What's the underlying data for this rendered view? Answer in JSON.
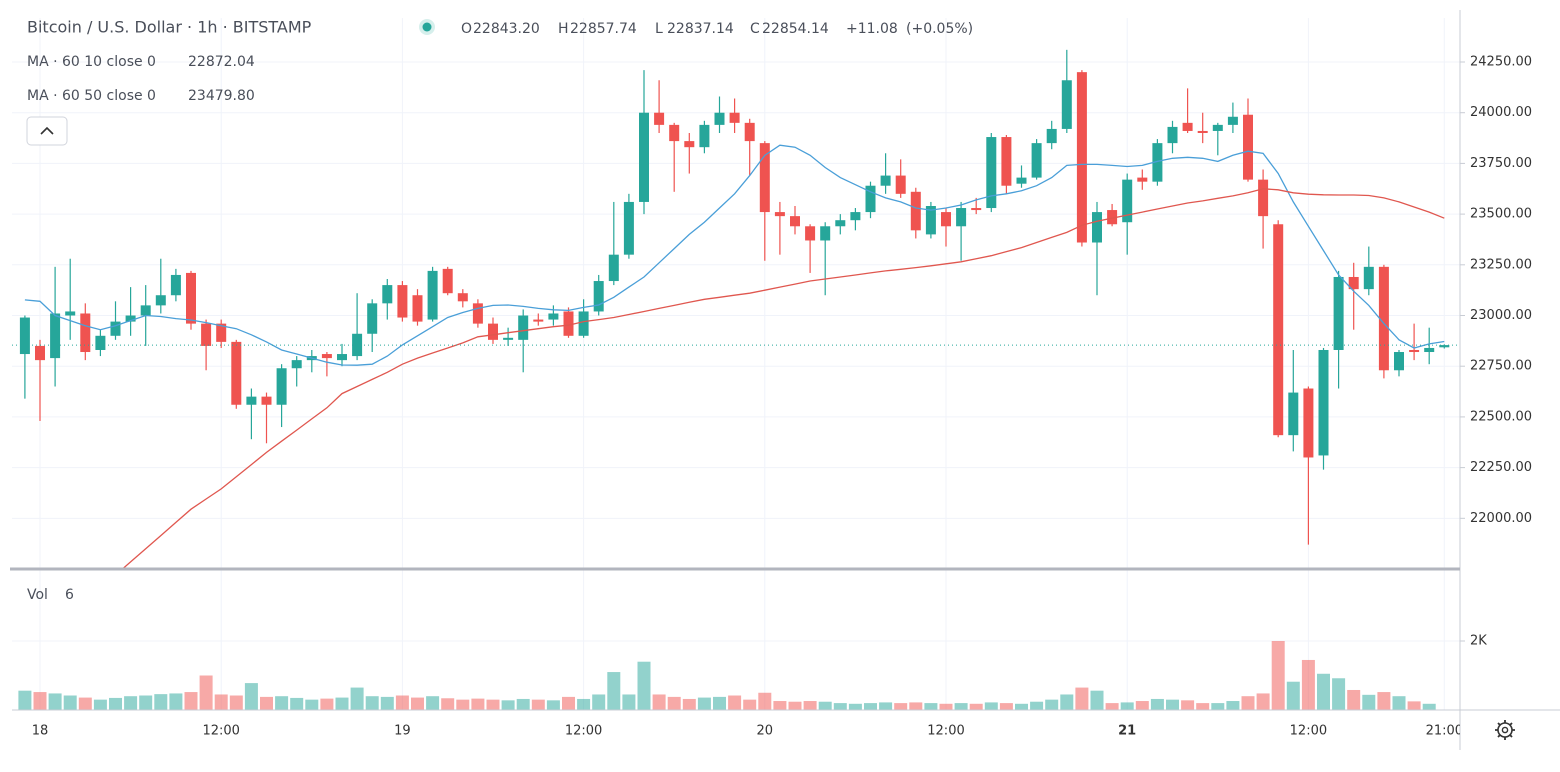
{
  "chart_data": {
    "type": "candlestick",
    "title": "Bitcoin / U.S. Dollar · 1h · BITSTAMP",
    "ohlc_legend": [
      {
        "key": "O",
        "value_label": "22843.20"
      },
      {
        "key": "H",
        "value_label": "22857.74"
      },
      {
        "key": "L",
        "value_label": "22837.14"
      },
      {
        "key": "C",
        "value_label": "22854.14"
      }
    ],
    "change": "+11.08",
    "change_pct": "(+0.05%)",
    "up_color": "#26a69a",
    "down_color": "#ef5350",
    "grid": true,
    "categories": [
      null,
      "18",
      null,
      null,
      null,
      null,
      null,
      null,
      null,
      null,
      null,
      null,
      null,
      "12:00",
      null,
      null,
      null,
      null,
      null,
      null,
      null,
      null,
      null,
      null,
      null,
      "19",
      null,
      null,
      null,
      null,
      null,
      null,
      null,
      null,
      null,
      null,
      null,
      "12:00",
      null,
      null,
      null,
      null,
      null,
      null,
      null,
      null,
      null,
      null,
      null,
      "20",
      null,
      null,
      null,
      null,
      null,
      null,
      null,
      null,
      null,
      null,
      null,
      "12:00",
      null,
      null,
      null,
      null,
      null,
      null,
      null,
      null,
      null,
      null,
      null,
      "21",
      null,
      null,
      null,
      null,
      null,
      null,
      null,
      null,
      null,
      null,
      null,
      "12:00",
      null,
      null,
      null,
      null,
      null,
      null,
      null,
      null,
      "21:00"
    ],
    "open": [
      22810,
      22850,
      22790,
      23000,
      23010,
      22830,
      22900,
      22970,
      23000,
      23050,
      23100,
      23210,
      22960,
      22960,
      22870,
      22560,
      22600,
      22560,
      22740,
      22780,
      22810,
      22780,
      22800,
      22910,
      23060,
      23150,
      23100,
      22980,
      23230,
      23110,
      23060,
      22960,
      22880,
      22880,
      22980,
      22980,
      23020,
      22900,
      23020,
      23170,
      23300,
      23560,
      24000,
      23940,
      23860,
      23830,
      23940,
      24000,
      23950,
      23850,
      23510,
      23490,
      23440,
      23370,
      23440,
      23470,
      23510,
      23640,
      23690,
      23610,
      23400,
      23510,
      23440,
      23530,
      23530,
      23880,
      23650,
      23680,
      23850,
      23920,
      24200,
      23360,
      23520,
      23460,
      23680,
      23660,
      23850,
      23950,
      23910,
      23910,
      23940,
      23990,
      23670,
      23450,
      22410,
      22640,
      22310,
      22830,
      23190,
      23130,
      23240,
      22730,
      22830,
      22820,
      22843.2
    ],
    "high": [
      23000,
      22880,
      23240,
      23280,
      23060,
      22930,
      23070,
      23140,
      23150,
      23280,
      23230,
      23220,
      22980,
      22980,
      22880,
      22640,
      22620,
      22760,
      22800,
      22830,
      22820,
      22860,
      23110,
      23080,
      23180,
      23170,
      23130,
      23240,
      23240,
      23130,
      23080,
      22990,
      22940,
      23030,
      23010,
      23050,
      23040,
      23080,
      23200,
      23560,
      23600,
      24210,
      24160,
      23950,
      23900,
      23960,
      24080,
      24070,
      23970,
      23860,
      23560,
      23540,
      23450,
      23460,
      23500,
      23530,
      23660,
      23800,
      23770,
      23630,
      23560,
      23530,
      23560,
      23580,
      23900,
      23890,
      23740,
      23870,
      23960,
      24310,
      24210,
      23560,
      23550,
      23700,
      23720,
      23870,
      23960,
      24120,
      24000,
      23950,
      24050,
      24070,
      23720,
      23470,
      22830,
      22650,
      22840,
      23220,
      23260,
      23340,
      23250,
      22830,
      22960,
      22940,
      22857.74
    ],
    "low": [
      22590,
      22480,
      22650,
      22880,
      22780,
      22800,
      22880,
      22900,
      22850,
      23010,
      23070,
      22930,
      22730,
      22840,
      22540,
      22390,
      22370,
      22450,
      22650,
      22720,
      22700,
      22750,
      22780,
      22820,
      22980,
      22970,
      22950,
      22970,
      23100,
      23040,
      22940,
      22860,
      22850,
      22720,
      22950,
      22950,
      22890,
      22890,
      23000,
      23150,
      23280,
      23500,
      23900,
      23610,
      23700,
      23800,
      23900,
      23900,
      23690,
      23270,
      23300,
      23400,
      23210,
      23100,
      23400,
      23420,
      23480,
      23600,
      23580,
      23380,
      23380,
      23340,
      23270,
      23500,
      23510,
      23600,
      23630,
      23670,
      23820,
      23900,
      23340,
      23100,
      23440,
      23300,
      23620,
      23640,
      23800,
      23900,
      23850,
      23790,
      23900,
      23660,
      23330,
      22400,
      22330,
      21870,
      22240,
      22640,
      22930,
      23100,
      22690,
      22700,
      22780,
      22760,
      22837.14
    ],
    "close": [
      22990,
      22780,
      23010,
      23020,
      22820,
      22900,
      22970,
      23000,
      23050,
      23100,
      23200,
      22960,
      22850,
      22870,
      22560,
      22600,
      22560,
      22740,
      22780,
      22800,
      22790,
      22810,
      22910,
      23060,
      23150,
      22990,
      22970,
      23220,
      23110,
      23070,
      22960,
      22880,
      22890,
      23000,
      22970,
      23010,
      22900,
      23020,
      23170,
      23300,
      23560,
      24000,
      23940,
      23860,
      23830,
      23940,
      24000,
      23950,
      23860,
      23510,
      23490,
      23440,
      23370,
      23440,
      23470,
      23510,
      23640,
      23690,
      23600,
      23420,
      23540,
      23440,
      23530,
      23520,
      23880,
      23640,
      23680,
      23850,
      23920,
      24160,
      23360,
      23510,
      23450,
      23670,
      23660,
      23850,
      23930,
      23910,
      23900,
      23940,
      23980,
      23670,
      23490,
      22410,
      22620,
      22300,
      22830,
      23190,
      23130,
      23240,
      22730,
      22820,
      22820,
      22840,
      22854.14
    ],
    "ylim": [
      21755,
      24467
    ],
    "yticks": [
      {
        "value": 22000,
        "label": "22000.00"
      },
      {
        "value": 22250,
        "label": "22250.00"
      },
      {
        "value": 22500,
        "label": "22500.00"
      },
      {
        "value": 22750,
        "label": "22750.00"
      },
      {
        "value": 23000,
        "label": "23000.00"
      },
      {
        "value": 23250,
        "label": "23250.00"
      },
      {
        "value": 23500,
        "label": "23500.00"
      },
      {
        "value": 23750,
        "label": "23750.00"
      },
      {
        "value": 24000,
        "label": "24000.00"
      },
      {
        "value": 24250,
        "label": "24250.00"
      }
    ],
    "overlays": [
      {
        "name": "MA · 60 10 close 0",
        "color": "#4a9fd8",
        "value_label": "22872.04",
        "values": [
          23077,
          23070,
          23000,
          22975,
          22950,
          22930,
          22950,
          22975,
          23000,
          22995,
          22985,
          22978,
          22965,
          22950,
          22935,
          22905,
          22870,
          22830,
          22810,
          22790,
          22770,
          22756,
          22755,
          22760,
          22800,
          22855,
          22900,
          22945,
          22990,
          23015,
          23035,
          23050,
          23052,
          23045,
          23035,
          23028,
          23025,
          23040,
          23052,
          23090,
          23140,
          23190,
          23260,
          23330,
          23400,
          23460,
          23530,
          23600,
          23690,
          23790,
          23840,
          23830,
          23790,
          23730,
          23680,
          23645,
          23610,
          23580,
          23560,
          23530,
          23520,
          23530,
          23545,
          23570,
          23590,
          23600,
          23615,
          23640,
          23680,
          23740,
          23745,
          23745,
          23740,
          23735,
          23740,
          23760,
          23775,
          23780,
          23775,
          23760,
          23790,
          23810,
          23800,
          23700,
          23560,
          23440,
          23320,
          23200,
          23120,
          23050,
          22960,
          22880,
          22840,
          22860,
          22872.04
        ]
      },
      {
        "name": "MA · 60 50 close 0",
        "color": "#e0574f",
        "value_label": "23479.80",
        "values": [
          null,
          null,
          null,
          null,
          null,
          null,
          21720,
          21785,
          21850,
          21915,
          21980,
          22045,
          22095,
          22145,
          22205,
          22265,
          22325,
          22380,
          22435,
          22490,
          22545,
          22615,
          22650,
          22685,
          22720,
          22760,
          22790,
          22815,
          22840,
          22865,
          22895,
          22905,
          22915,
          22925,
          22935,
          22945,
          22952,
          22970,
          22980,
          22990,
          23005,
          23020,
          23035,
          23050,
          23065,
          23080,
          23090,
          23100,
          23110,
          23125,
          23140,
          23155,
          23170,
          23180,
          23190,
          23200,
          23210,
          23220,
          23228,
          23236,
          23245,
          23255,
          23265,
          23280,
          23295,
          23315,
          23335,
          23360,
          23385,
          23410,
          23445,
          23465,
          23480,
          23495,
          23510,
          23525,
          23540,
          23555,
          23565,
          23578,
          23590,
          23605,
          23625,
          23620,
          23605,
          23598,
          23595,
          23594,
          23594,
          23592,
          23580,
          23560,
          23535,
          23510,
          23479.8
        ]
      }
    ],
    "volume": {
      "name": "Vol",
      "ylim": [
        0,
        4000
      ],
      "yticks": [
        {
          "value": 2000,
          "label": "2K"
        }
      ],
      "values": [
        560,
        520,
        480,
        420,
        360,
        300,
        350,
        400,
        420,
        460,
        480,
        520,
        1000,
        450,
        420,
        780,
        380,
        400,
        350,
        300,
        330,
        360,
        650,
        400,
        380,
        420,
        360,
        400,
        340,
        300,
        330,
        300,
        280,
        320,
        300,
        280,
        380,
        320,
        450,
        1100,
        450,
        1400,
        450,
        380,
        320,
        360,
        380,
        420,
        300,
        500,
        260,
        240,
        260,
        240,
        200,
        180,
        200,
        220,
        200,
        220,
        200,
        180,
        200,
        180,
        220,
        200,
        180,
        240,
        300,
        450,
        650,
        560,
        200,
        220,
        260,
        320,
        300,
        280,
        200,
        200,
        260,
        400,
        480,
        2000,
        820,
        1450,
        1050,
        920,
        580,
        440,
        520,
        400,
        250,
        180,
        6
      ]
    }
  }
}
